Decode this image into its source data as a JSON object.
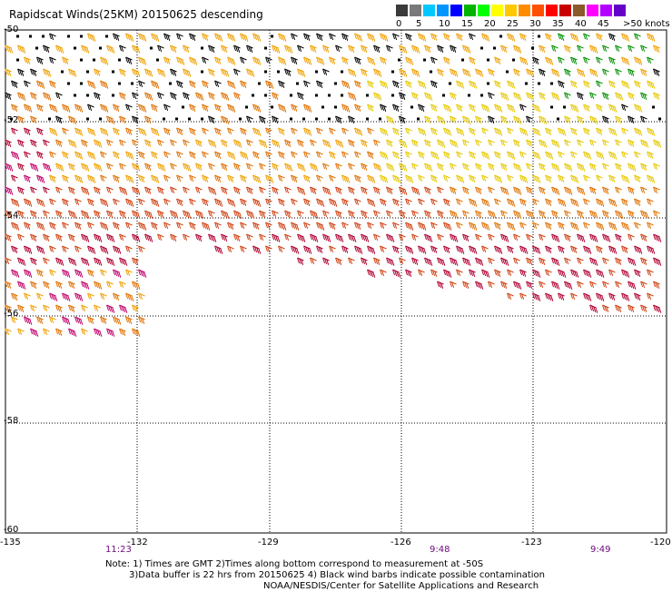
{
  "title": "Rapidscat Winds(25KM) 20150625 descending",
  "legend": {
    "labels": [
      "0",
      "5",
      "10",
      "15",
      "20",
      "25",
      "30",
      "35",
      "40",
      "45",
      ">50 knots"
    ],
    "colors": [
      "#3a3a3a",
      "#7a7a7a",
      "#00c8ff",
      "#0096ff",
      "#0000ff",
      "#00b400",
      "#00ff00",
      "#ffff00",
      "#ffc800",
      "#ff8c00",
      "#ff5000",
      "#ff0000",
      "#c80000",
      "#8b5a2b",
      "#ff00ff",
      "#b400ff",
      "#6400c8"
    ]
  },
  "axes": {
    "lat_labels": [
      "-50",
      "-52",
      "-54",
      "-56",
      "-58",
      "-60"
    ],
    "lon_labels": [
      "-135",
      "-132",
      "-129",
      "-126",
      "-123",
      "-120"
    ]
  },
  "pass_times": [
    "11:23",
    "9:48",
    "9:49"
  ],
  "notes": {
    "line1": "Note: 1) Times are GMT 2)Times along bottom correspond to measurement at -50S",
    "line2": "3)Data buffer is 22 hrs from 20150625 4) Black wind barbs indicate possible contamination",
    "line3": "NOAA/NESDIS/Center for Satellite Applications and Research"
  },
  "wind_colors": {
    "contaminated": "#000000",
    "yellow": "#e6c800",
    "light_orange": "#f0a000",
    "orange": "#e07000",
    "red_orange": "#d04010",
    "crimson": "#b00030",
    "magenta": "#c0006a",
    "green": "#009000"
  }
}
